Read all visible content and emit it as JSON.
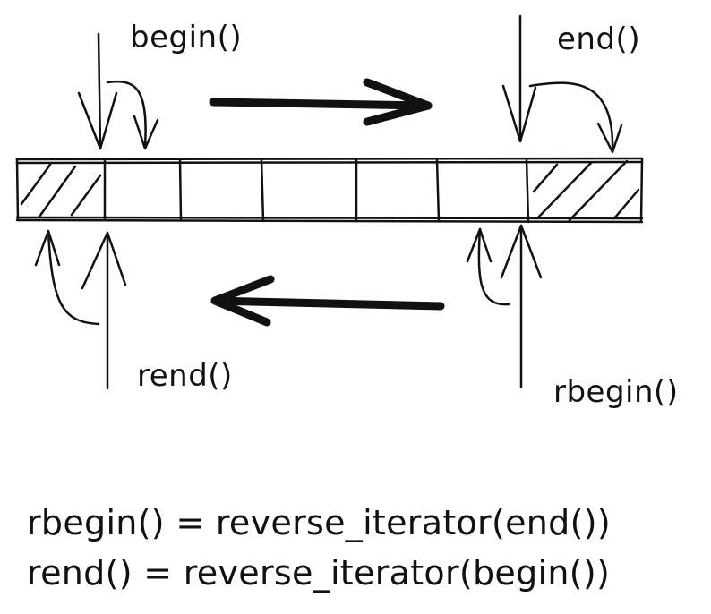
{
  "labels": {
    "begin": "begin()",
    "end": "end()",
    "rend": "rend()",
    "rbegin": "rbegin()"
  },
  "formulas": [
    "rbegin() = reverse_iterator(end())",
    "rend() = reverse_iterator(begin())"
  ],
  "array": {
    "cells": 7,
    "hatched_cells": [
      "before-first",
      "past-the-end"
    ]
  },
  "arrows": {
    "forward": "right",
    "reverse": "left"
  },
  "colors": {
    "ink": "#111111",
    "background": "#ffffff"
  }
}
